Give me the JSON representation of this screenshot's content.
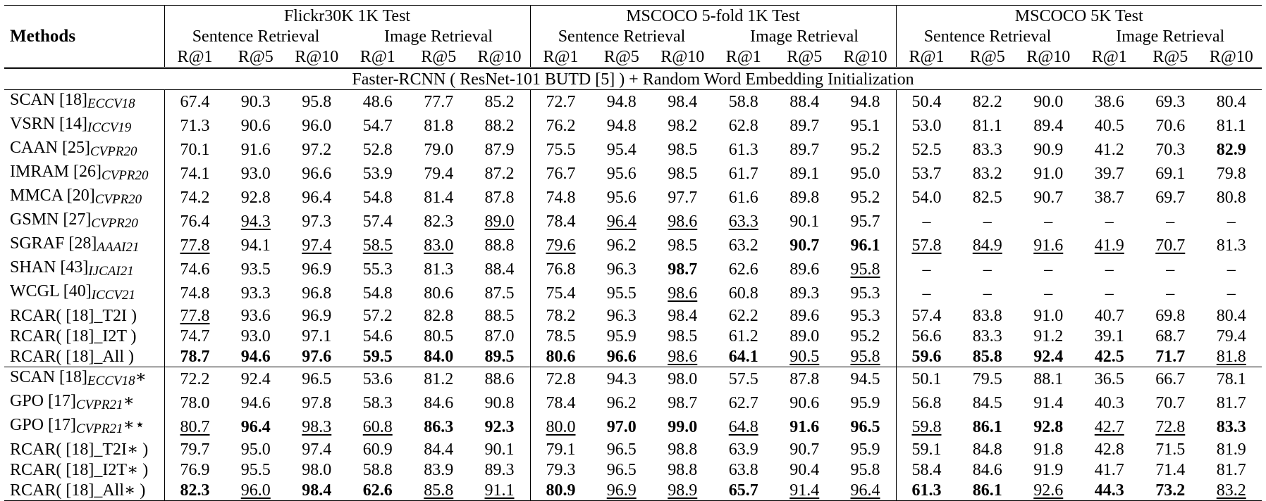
{
  "header": {
    "methods_label": "Methods",
    "datasets": [
      "Flickr30K 1K Test",
      "MSCOCO 5-fold 1K Test",
      "MSCOCO 5K Test"
    ],
    "tasks": [
      "Sentence Retrieval",
      "Image Retrieval"
    ],
    "metrics": [
      "R@1",
      "R@5",
      "R@10"
    ]
  },
  "section_title": "Faster-RCNN ( ResNet-101 BUTD [5] ) + Random Word Embedding Initialization",
  "rows": [
    {
      "name": "SCAN [18]",
      "sub": "ECCV18",
      "suffix": "",
      "ours": false,
      "vals": [
        "67.4",
        "90.3",
        "95.8",
        "48.6",
        "77.7",
        "85.2",
        "72.7",
        "94.8",
        "98.4",
        "58.8",
        "88.4",
        "94.8",
        "50.4",
        "82.2",
        "90.0",
        "38.6",
        "69.3",
        "80.4"
      ],
      "bold": [],
      "under": []
    },
    {
      "name": "VSRN [14]",
      "sub": "ICCV19",
      "suffix": "",
      "ours": false,
      "vals": [
        "71.3",
        "90.6",
        "96.0",
        "54.7",
        "81.8",
        "88.2",
        "76.2",
        "94.8",
        "98.2",
        "62.8",
        "89.7",
        "95.1",
        "53.0",
        "81.1",
        "89.4",
        "40.5",
        "70.6",
        "81.1"
      ],
      "bold": [],
      "under": []
    },
    {
      "name": "CAAN [25]",
      "sub": "CVPR20",
      "suffix": "",
      "ours": false,
      "vals": [
        "70.1",
        "91.6",
        "97.2",
        "52.8",
        "79.0",
        "87.9",
        "75.5",
        "95.4",
        "98.5",
        "61.3",
        "89.7",
        "95.2",
        "52.5",
        "83.3",
        "90.9",
        "41.2",
        "70.3",
        "82.9"
      ],
      "bold": [
        17
      ],
      "under": []
    },
    {
      "name": "IMRAM [26]",
      "sub": "CVPR20",
      "suffix": "",
      "ours": false,
      "vals": [
        "74.1",
        "93.0",
        "96.6",
        "53.9",
        "79.4",
        "87.2",
        "76.7",
        "95.6",
        "98.5",
        "61.7",
        "89.1",
        "95.0",
        "53.7",
        "83.2",
        "91.0",
        "39.7",
        "69.1",
        "79.8"
      ],
      "bold": [],
      "under": []
    },
    {
      "name": "MMCA [20]",
      "sub": "CVPR20",
      "suffix": "",
      "ours": false,
      "vals": [
        "74.2",
        "92.8",
        "96.4",
        "54.8",
        "81.4",
        "87.8",
        "74.8",
        "95.6",
        "97.7",
        "61.6",
        "89.8",
        "95.2",
        "54.0",
        "82.5",
        "90.7",
        "38.7",
        "69.7",
        "80.8"
      ],
      "bold": [],
      "under": []
    },
    {
      "name": "GSMN [27]",
      "sub": "CVPR20",
      "suffix": "",
      "ours": false,
      "vals": [
        "76.4",
        "94.3",
        "97.3",
        "57.4",
        "82.3",
        "89.0",
        "78.4",
        "96.4",
        "98.6",
        "63.3",
        "90.1",
        "95.7",
        "–",
        "–",
        "–",
        "–",
        "–",
        "–"
      ],
      "bold": [],
      "under": [
        1,
        5,
        7,
        8,
        9
      ]
    },
    {
      "name": "SGRAF [28]",
      "sub": "AAAI21",
      "suffix": "",
      "ours": false,
      "vals": [
        "77.8",
        "94.1",
        "97.4",
        "58.5",
        "83.0",
        "88.8",
        "79.6",
        "96.2",
        "98.5",
        "63.2",
        "90.7",
        "96.1",
        "57.8",
        "84.9",
        "91.6",
        "41.9",
        "70.7",
        "81.3"
      ],
      "bold": [
        10,
        11
      ],
      "under": [
        0,
        2,
        3,
        4,
        6,
        12,
        13,
        14,
        15,
        16
      ]
    },
    {
      "name": "SHAN [43]",
      "sub": "IJCAI21",
      "suffix": "",
      "ours": false,
      "vals": [
        "74.6",
        "93.5",
        "96.9",
        "55.3",
        "81.3",
        "88.4",
        "76.8",
        "96.3",
        "98.7",
        "62.6",
        "89.6",
        "95.8",
        "–",
        "–",
        "–",
        "–",
        "–",
        "–"
      ],
      "bold": [
        8
      ],
      "under": [
        11
      ]
    },
    {
      "name": "WCGL [40]",
      "sub": "ICCV21",
      "suffix": "",
      "ours": false,
      "vals": [
        "74.8",
        "93.3",
        "96.8",
        "54.8",
        "80.6",
        "87.5",
        "75.4",
        "95.5",
        "98.6",
        "60.8",
        "89.3",
        "95.3",
        "–",
        "–",
        "–",
        "–",
        "–",
        "–"
      ],
      "bold": [],
      "under": [
        8
      ]
    },
    {
      "name": "RCAR( [18]_T2I )",
      "sub": "",
      "suffix": "",
      "ours": true,
      "vals": [
        "77.8",
        "93.6",
        "96.9",
        "57.2",
        "82.8",
        "88.5",
        "78.2",
        "96.3",
        "98.4",
        "62.2",
        "89.6",
        "95.3",
        "57.4",
        "83.8",
        "91.0",
        "40.7",
        "69.8",
        "80.4"
      ],
      "bold": [],
      "under": [
        0
      ]
    },
    {
      "name": "RCAR( [18]_I2T )",
      "sub": "",
      "suffix": "",
      "ours": true,
      "vals": [
        "74.7",
        "93.0",
        "97.1",
        "54.6",
        "80.5",
        "87.0",
        "78.5",
        "95.9",
        "98.5",
        "61.2",
        "89.0",
        "95.2",
        "56.6",
        "83.3",
        "91.2",
        "39.1",
        "68.7",
        "79.4"
      ],
      "bold": [],
      "under": []
    },
    {
      "name": "RCAR( [18]_All )",
      "sub": "",
      "suffix": "",
      "ours": true,
      "vals": [
        "78.7",
        "94.6",
        "97.6",
        "59.5",
        "84.0",
        "89.5",
        "80.6",
        "96.6",
        "98.6",
        "64.1",
        "90.5",
        "95.8",
        "59.6",
        "85.8",
        "92.4",
        "42.5",
        "71.7",
        "81.8"
      ],
      "bold": [
        0,
        1,
        2,
        3,
        4,
        5,
        6,
        7,
        9,
        12,
        13,
        14,
        15,
        16
      ],
      "under": [
        8,
        10,
        11,
        17
      ]
    },
    {
      "name": "SCAN [18]",
      "sub": "ECCV18",
      "suffix": "∗",
      "ours": false,
      "vals": [
        "72.2",
        "92.4",
        "96.5",
        "53.6",
        "81.2",
        "88.6",
        "72.8",
        "94.3",
        "98.0",
        "57.5",
        "87.8",
        "94.5",
        "50.1",
        "79.5",
        "88.1",
        "36.5",
        "66.7",
        "78.1"
      ],
      "bold": [],
      "under": []
    },
    {
      "name": "GPO [17]",
      "sub": "CVPR21",
      "suffix": "∗",
      "ours": false,
      "vals": [
        "78.0",
        "94.6",
        "97.8",
        "58.3",
        "84.6",
        "90.8",
        "78.4",
        "96.2",
        "98.7",
        "62.7",
        "90.6",
        "95.9",
        "56.8",
        "84.5",
        "91.4",
        "40.3",
        "70.7",
        "81.7"
      ],
      "bold": [],
      "under": []
    },
    {
      "name": "GPO [17]",
      "sub": "CVPR21",
      "suffix": "∗⋆",
      "ours": false,
      "vals": [
        "80.7",
        "96.4",
        "98.3",
        "60.8",
        "86.3",
        "92.3",
        "80.0",
        "97.0",
        "99.0",
        "64.8",
        "91.6",
        "96.5",
        "59.8",
        "86.1",
        "92.8",
        "42.7",
        "72.8",
        "83.3"
      ],
      "bold": [
        1,
        4,
        5,
        7,
        8,
        10,
        11,
        13,
        14,
        17
      ],
      "under": [
        0,
        2,
        3,
        6,
        9,
        12,
        15,
        16
      ]
    },
    {
      "name": "RCAR( [18]_T2I∗ )",
      "sub": "",
      "suffix": "",
      "ours": true,
      "vals": [
        "79.7",
        "95.0",
        "97.4",
        "60.9",
        "84.4",
        "90.1",
        "79.1",
        "96.5",
        "98.8",
        "63.9",
        "90.7",
        "95.9",
        "59.1",
        "84.8",
        "91.8",
        "42.8",
        "71.5",
        "81.9"
      ],
      "bold": [],
      "under": []
    },
    {
      "name": "RCAR( [18]_I2T∗ )",
      "sub": "",
      "suffix": "",
      "ours": true,
      "vals": [
        "76.9",
        "95.5",
        "98.0",
        "58.8",
        "83.9",
        "89.3",
        "79.3",
        "96.5",
        "98.8",
        "63.8",
        "90.4",
        "95.8",
        "58.4",
        "84.6",
        "91.9",
        "41.7",
        "71.4",
        "81.7"
      ],
      "bold": [],
      "under": []
    },
    {
      "name": "RCAR( [18]_All∗ )",
      "sub": "",
      "suffix": "",
      "ours": true,
      "vals": [
        "82.3",
        "96.0",
        "98.4",
        "62.6",
        "85.8",
        "91.1",
        "80.9",
        "96.9",
        "98.9",
        "65.7",
        "91.4",
        "96.4",
        "61.3",
        "86.1",
        "92.6",
        "44.3",
        "73.2",
        "83.2"
      ],
      "bold": [
        0,
        2,
        3,
        6,
        9,
        12,
        13,
        15,
        16
      ],
      "under": [
        1,
        4,
        5,
        7,
        8,
        10,
        11,
        14,
        17
      ]
    }
  ]
}
